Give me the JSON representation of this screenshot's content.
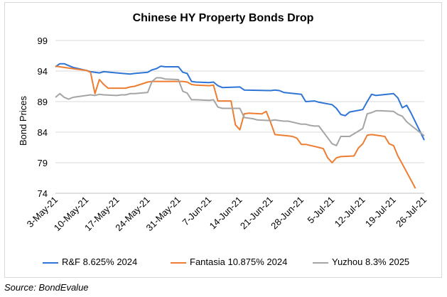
{
  "chart_data": {
    "type": "line",
    "title": "Chinese HY Property Bonds Drop",
    "ylabel": "Bond Prices",
    "xlabel": "",
    "ylim": [
      74,
      99
    ],
    "yticks": [
      74,
      79,
      84,
      89,
      94,
      99
    ],
    "x_tick_labels": [
      "3-May-21",
      "10-May-21",
      "17-May-21",
      "24-May-21",
      "31-May-21",
      "7-Jun-21",
      "14-Jun-21",
      "21-Jun-21",
      "28-Jun-21",
      "5-Jul-21",
      "12-Jul-21",
      "19-Jul-21",
      "26-Jul-21"
    ],
    "grid": "horizontal",
    "legend_position": "bottom",
    "series": [
      {
        "name": "R&F 8.625% 2024",
        "color": "#2e75d6",
        "points": [
          [
            0,
            94.7
          ],
          [
            1,
            95.2
          ],
          [
            2,
            95.2
          ],
          [
            3,
            94.9
          ],
          [
            4,
            94.6
          ],
          [
            7,
            94.1
          ],
          [
            8,
            93.9
          ],
          [
            9,
            93.8
          ],
          [
            10,
            93.7
          ],
          [
            11,
            93.9
          ],
          [
            14,
            93.7
          ],
          [
            17,
            93.5
          ],
          [
            18,
            93.6
          ],
          [
            21,
            93.8
          ],
          [
            22,
            94.2
          ],
          [
            23,
            94.4
          ],
          [
            24,
            94.8
          ],
          [
            25,
            94.7
          ],
          [
            28,
            94.7
          ],
          [
            29,
            93.8
          ],
          [
            30,
            93.6
          ],
          [
            31,
            92.3
          ],
          [
            32,
            92.2
          ],
          [
            35,
            92.1
          ],
          [
            36,
            92.2
          ],
          [
            37,
            91.6
          ],
          [
            38,
            91.3
          ],
          [
            42,
            91.4
          ],
          [
            43,
            90.9
          ],
          [
            49,
            90.8
          ],
          [
            50,
            90.9
          ],
          [
            51,
            90.8
          ],
          [
            52,
            90.5
          ],
          [
            56,
            90.2
          ],
          [
            57,
            89.0
          ],
          [
            59,
            89.1
          ],
          [
            60,
            88.9
          ],
          [
            63,
            88.5
          ],
          [
            64,
            87.9
          ],
          [
            65,
            86.9
          ],
          [
            66,
            86.7
          ],
          [
            67,
            87.3
          ],
          [
            70,
            87.7
          ],
          [
            71,
            89.0
          ],
          [
            72,
            90.2
          ],
          [
            73,
            90.0
          ],
          [
            77,
            90.3
          ],
          [
            78,
            89.6
          ],
          [
            79,
            88.0
          ],
          [
            80,
            88.4
          ],
          [
            81,
            87.1
          ],
          [
            84,
            82.7
          ]
        ]
      },
      {
        "name": "Fantasia 10.875% 2024",
        "color": "#ed7d31",
        "points": [
          [
            0,
            94.8
          ],
          [
            1,
            94.7
          ],
          [
            3,
            94.5
          ],
          [
            4,
            94.4
          ],
          [
            7,
            94.1
          ],
          [
            8,
            93.8
          ],
          [
            9,
            90.3
          ],
          [
            10,
            92.6
          ],
          [
            11,
            91.8
          ],
          [
            12,
            91.2
          ],
          [
            15,
            91.2
          ],
          [
            16,
            91.2
          ],
          [
            17,
            91.4
          ],
          [
            18,
            91.5
          ],
          [
            21,
            92.2
          ],
          [
            22,
            92.3
          ],
          [
            23,
            92.3
          ],
          [
            24,
            92.3
          ],
          [
            25,
            92.3
          ],
          [
            28,
            92.3
          ],
          [
            29,
            92.3
          ],
          [
            30,
            92.2
          ],
          [
            31,
            91.8
          ],
          [
            32,
            91.7
          ],
          [
            35,
            91.6
          ],
          [
            36,
            91.7
          ],
          [
            37,
            89.1
          ],
          [
            38,
            89.1
          ],
          [
            39,
            89.1
          ],
          [
            40,
            89.1
          ],
          [
            41,
            85.2
          ],
          [
            42,
            84.4
          ],
          [
            43,
            87.0
          ],
          [
            44,
            87.1
          ],
          [
            47,
            87.0
          ],
          [
            48,
            87.4
          ],
          [
            49,
            85.6
          ],
          [
            50,
            83.6
          ],
          [
            53,
            83.4
          ],
          [
            54,
            83.3
          ],
          [
            55,
            83.0
          ],
          [
            56,
            82.0
          ],
          [
            57,
            82.0
          ],
          [
            60,
            81.5
          ],
          [
            61,
            81.3
          ],
          [
            62,
            79.8
          ],
          [
            63,
            79.0
          ],
          [
            64,
            79.8
          ],
          [
            65,
            80.0
          ],
          [
            68,
            80.1
          ],
          [
            69,
            81.4
          ],
          [
            70,
            82.1
          ],
          [
            71,
            83.5
          ],
          [
            72,
            83.6
          ],
          [
            75,
            83.3
          ],
          [
            76,
            82.1
          ],
          [
            77,
            81.8
          ],
          [
            78,
            80.1
          ],
          [
            79,
            78.8
          ],
          [
            82,
            74.8
          ]
        ]
      },
      {
        "name": "Yuzhou 8.3% 2025",
        "color": "#a5a5a5",
        "points": [
          [
            0,
            89.7
          ],
          [
            1,
            90.3
          ],
          [
            2,
            89.7
          ],
          [
            3,
            89.4
          ],
          [
            4,
            89.7
          ],
          [
            7,
            90.0
          ],
          [
            8,
            90.1
          ],
          [
            9,
            90.0
          ],
          [
            10,
            90.2
          ],
          [
            11,
            90.1
          ],
          [
            14,
            90.0
          ],
          [
            15,
            90.1
          ],
          [
            16,
            90.1
          ],
          [
            17,
            90.3
          ],
          [
            18,
            90.3
          ],
          [
            21,
            90.5
          ],
          [
            22,
            92.3
          ],
          [
            23,
            92.9
          ],
          [
            24,
            92.9
          ],
          [
            25,
            92.7
          ],
          [
            28,
            92.6
          ],
          [
            29,
            90.7
          ],
          [
            30,
            90.4
          ],
          [
            31,
            89.3
          ],
          [
            32,
            89.3
          ],
          [
            35,
            89.2
          ],
          [
            36,
            89.3
          ],
          [
            37,
            88.1
          ],
          [
            38,
            87.9
          ],
          [
            39,
            87.9
          ],
          [
            42,
            87.9
          ],
          [
            43,
            86.4
          ],
          [
            44,
            86.3
          ],
          [
            45,
            86.2
          ],
          [
            46,
            86.0
          ],
          [
            49,
            85.9
          ],
          [
            50,
            86.0
          ],
          [
            51,
            85.9
          ],
          [
            52,
            85.8
          ],
          [
            53,
            85.8
          ],
          [
            56,
            85.3
          ],
          [
            57,
            85.3
          ],
          [
            58,
            85.1
          ],
          [
            59,
            85.0
          ],
          [
            60,
            85.0
          ],
          [
            63,
            82.1
          ],
          [
            64,
            81.8
          ],
          [
            65,
            83.3
          ],
          [
            66,
            83.3
          ],
          [
            67,
            83.3
          ],
          [
            70,
            84.6
          ],
          [
            71,
            87.0
          ],
          [
            72,
            87.2
          ],
          [
            73,
            87.5
          ],
          [
            74,
            87.5
          ],
          [
            77,
            87.4
          ],
          [
            78,
            86.9
          ],
          [
            79,
            86.6
          ],
          [
            80,
            85.7
          ],
          [
            81,
            85.1
          ],
          [
            84,
            83.4
          ]
        ]
      }
    ]
  },
  "footer": {
    "source": "Source: BondEvalue"
  }
}
